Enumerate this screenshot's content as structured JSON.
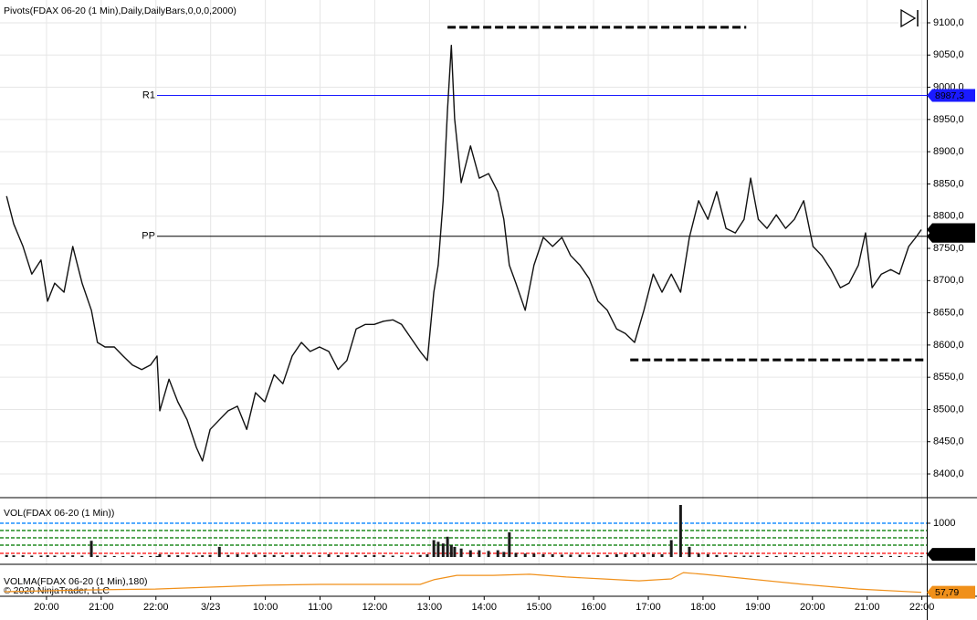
{
  "chart_data": [
    {
      "type": "line",
      "title": "Pivots(FDAX 06-20 (1 Min),Daily,DailyBars,0,0,0,2000)",
      "color": "#111111",
      "grid": true,
      "xlim": [
        -0.85,
        16.09
      ],
      "ylim": [
        8363.2,
        9135.4
      ],
      "yticks": [
        {
          "value": 8400,
          "label": "8400,0"
        },
        {
          "value": 8450,
          "label": "8450,0"
        },
        {
          "value": 8500,
          "label": "8500,0"
        },
        {
          "value": 8550,
          "label": "8550,0"
        },
        {
          "value": 8600,
          "label": "8600,0"
        },
        {
          "value": 8650,
          "label": "8650,0"
        },
        {
          "value": 8700,
          "label": "8700,0"
        },
        {
          "value": 8750,
          "label": "8750,0"
        },
        {
          "value": 8800,
          "label": "8800,0"
        },
        {
          "value": 8850,
          "label": "8850,0"
        },
        {
          "value": 8900,
          "label": "8900,0"
        },
        {
          "value": 8950,
          "label": "8950,0"
        },
        {
          "value": 9000,
          "label": "9000,0"
        },
        {
          "value": 9050,
          "label": "9050,0"
        },
        {
          "value": 9100,
          "label": "9100,0"
        }
      ],
      "x": [
        -0.73,
        -0.6,
        -0.43,
        -0.27,
        -0.1,
        0.02,
        0.15,
        0.32,
        0.48,
        0.65,
        0.82,
        0.93,
        1.07,
        1.24,
        1.4,
        1.57,
        1.74,
        1.9,
        2.02,
        2.07,
        2.24,
        2.4,
        2.57,
        2.74,
        2.85,
        2.99,
        3.16,
        3.32,
        3.49,
        3.66,
        3.82,
        3.99,
        4.16,
        4.32,
        4.49,
        4.66,
        4.82,
        4.99,
        5.16,
        5.33,
        5.49,
        5.66,
        5.83,
        5.99,
        6.16,
        6.33,
        6.49,
        6.66,
        6.83,
        6.96,
        7.08,
        7.16,
        7.25,
        7.33,
        7.4,
        7.46,
        7.58,
        7.75,
        7.91,
        8.08,
        8.25,
        8.36,
        8.46,
        8.58,
        8.75,
        8.91,
        9.08,
        9.25,
        9.42,
        9.58,
        9.75,
        9.92,
        10.08,
        10.25,
        10.42,
        10.58,
        10.75,
        10.92,
        11.09,
        11.25,
        11.42,
        11.59,
        11.75,
        11.92,
        12.09,
        12.25,
        12.42,
        12.59,
        12.75,
        12.87,
        13.01,
        13.17,
        13.34,
        13.51,
        13.67,
        13.84,
        14.01,
        14.17,
        14.34,
        14.51,
        14.67,
        14.84,
        14.97,
        15.09,
        15.26,
        15.43,
        15.59,
        15.76,
        15.89,
        15.99
      ],
      "values": [
        8831,
        8788,
        8753,
        8710,
        8732,
        8668,
        8696,
        8682,
        8753,
        8696,
        8654,
        8604,
        8597,
        8597,
        8583,
        8569,
        8562,
        8569,
        8583,
        8498,
        8547,
        8512,
        8484,
        8441,
        8420,
        8469,
        8484,
        8498,
        8505,
        8469,
        8526,
        8512,
        8554,
        8540,
        8583,
        8604,
        8590,
        8597,
        8590,
        8562,
        8576,
        8625,
        8632,
        8632,
        8637,
        8639,
        8632,
        8611,
        8590,
        8576,
        8682,
        8724,
        8824,
        8965,
        9065,
        8951,
        8852,
        8909,
        8859,
        8866,
        8838,
        8795,
        8724,
        8696,
        8654,
        8724,
        8767,
        8753,
        8767,
        8739,
        8724,
        8703,
        8668,
        8654,
        8625,
        8618,
        8604,
        8654,
        8710,
        8682,
        8710,
        8682,
        8767,
        8824,
        8795,
        8838,
        8781,
        8774,
        8795,
        8859,
        8795,
        8781,
        8802,
        8781,
        8795,
        8824,
        8753,
        8739,
        8717,
        8689,
        8696,
        8724,
        8774,
        8689,
        8710,
        8717,
        8710,
        8753,
        8767,
        8779
      ],
      "pivots": [
        {
          "name": "R1",
          "value": 8987.3,
          "label": "8987,3",
          "color": "#1a1aff",
          "start": 2.02
        },
        {
          "name": "PP",
          "value": 8768.7,
          "label": "8768,7",
          "color": "#000000",
          "start": 2.02
        }
      ],
      "last_price": {
        "value": 8779,
        "label": "8779,0"
      },
      "annotations": [
        {
          "y": 9093,
          "x": [
            7.33,
            12.79
          ]
        },
        {
          "y": 8577,
          "x": [
            10.67,
            16.09
          ]
        }
      ]
    },
    {
      "type": "bar",
      "title": "VOL(FDAX 06-20 (1 Min))",
      "color": "#1a1a1a",
      "xlim": [
        -0.85,
        16.09
      ],
      "ylim": [
        0,
        1730
      ],
      "yticks": [
        1000
      ],
      "levels": [
        {
          "value": 1000,
          "color": "#1e90ff"
        },
        {
          "value": 784,
          "color": "#228b22"
        },
        {
          "value": 568,
          "color": "#228b22"
        },
        {
          "value": 351,
          "color": "#228b22"
        },
        {
          "value": 108,
          "color": "#ff3030"
        }
      ],
      "x": [
        -0.73,
        -0.6,
        -0.43,
        -0.27,
        -0.1,
        0.02,
        0.15,
        0.32,
        0.48,
        0.65,
        0.82,
        0.93,
        1.07,
        1.24,
        1.4,
        1.57,
        1.74,
        1.9,
        2.02,
        2.07,
        2.24,
        2.4,
        2.57,
        2.74,
        2.85,
        2.99,
        3.16,
        3.32,
        3.49,
        3.66,
        3.82,
        3.99,
        4.16,
        4.32,
        4.49,
        4.66,
        4.82,
        4.99,
        5.16,
        5.33,
        5.49,
        5.66,
        5.83,
        5.99,
        6.16,
        6.33,
        6.49,
        6.66,
        6.83,
        6.96,
        7.08,
        7.16,
        7.25,
        7.33,
        7.4,
        7.46,
        7.58,
        7.75,
        7.91,
        8.08,
        8.25,
        8.36,
        8.46,
        8.58,
        8.75,
        8.91,
        9.08,
        9.25,
        9.42,
        9.58,
        9.75,
        9.92,
        10.08,
        10.25,
        10.42,
        10.58,
        10.75,
        10.92,
        11.09,
        11.25,
        11.42,
        11.59,
        11.75,
        11.92,
        12.09,
        12.25,
        12.42,
        12.59,
        12.75,
        12.87,
        13.01,
        13.17,
        13.34,
        13.51,
        13.67,
        13.84,
        14.01,
        14.17,
        14.34,
        14.51,
        14.67,
        14.84,
        14.97,
        15.09,
        15.26,
        15.43,
        15.59,
        15.76,
        15.89,
        15.99
      ],
      "values": [
        60,
        50,
        50,
        40,
        40,
        50,
        40,
        40,
        50,
        40,
        480,
        40,
        40,
        30,
        30,
        40,
        30,
        30,
        30,
        80,
        60,
        50,
        50,
        40,
        50,
        60,
        300,
        60,
        80,
        60,
        70,
        60,
        60,
        50,
        60,
        60,
        50,
        50,
        80,
        50,
        60,
        50,
        50,
        60,
        50,
        40,
        40,
        40,
        60,
        80,
        500,
        450,
        400,
        600,
        350,
        300,
        250,
        200,
        200,
        180,
        200,
        150,
        730,
        120,
        100,
        100,
        80,
        80,
        70,
        70,
        70,
        60,
        60,
        60,
        80,
        80,
        80,
        80,
        80,
        80,
        500,
        1540,
        300,
        100,
        80,
        60,
        50,
        40,
        40,
        40,
        40,
        30,
        30,
        40,
        30,
        30,
        30,
        30,
        30,
        30,
        30,
        30,
        30,
        30,
        30,
        30,
        30,
        20,
        20,
        24
      ]
    },
    {
      "type": "line",
      "title": "VOLMA(FDAX 06-20 (1 Min),180)",
      "color": "#f0901a",
      "xlim": [
        -0.85,
        16.09
      ],
      "ylim": [
        40,
        200
      ],
      "xticks": [
        {
          "value": 0,
          "label": "20:00"
        },
        {
          "value": 1,
          "label": "21:00"
        },
        {
          "value": 2,
          "label": "22:00"
        },
        {
          "value": 3,
          "label": "3/23"
        },
        {
          "value": 4,
          "label": "10:00"
        },
        {
          "value": 5,
          "label": "11:00"
        },
        {
          "value": 6,
          "label": "12:00"
        },
        {
          "value": 7,
          "label": "13:00"
        },
        {
          "value": 8,
          "label": "14:00"
        },
        {
          "value": 9,
          "label": "15:00"
        },
        {
          "value": 10,
          "label": "16:00"
        },
        {
          "value": 11,
          "label": "17:00"
        },
        {
          "value": 12,
          "label": "18:00"
        },
        {
          "value": 13,
          "label": "19:00"
        },
        {
          "value": 14,
          "label": "20:00"
        },
        {
          "value": 15,
          "label": "21:00"
        },
        {
          "value": 16,
          "label": "22:00"
        }
      ],
      "x": [
        -0.77,
        0.82,
        1.99,
        2.99,
        3.99,
        4.99,
        5.99,
        6.83,
        7.08,
        7.5,
        8.16,
        8.83,
        9.5,
        10.17,
        10.83,
        11.42,
        11.64,
        12.0,
        12.84,
        13.84,
        14.84,
        15.99
      ],
      "values": [
        61.3,
        72,
        77,
        88,
        99,
        104,
        104,
        104,
        131,
        157,
        157,
        163,
        147,
        136,
        125,
        136,
        173,
        163,
        136,
        104,
        77,
        57.79
      ],
      "last": {
        "value": 57.79,
        "label": "57,79"
      }
    }
  ],
  "footer": "© 2020 NinjaTrader, LLC"
}
